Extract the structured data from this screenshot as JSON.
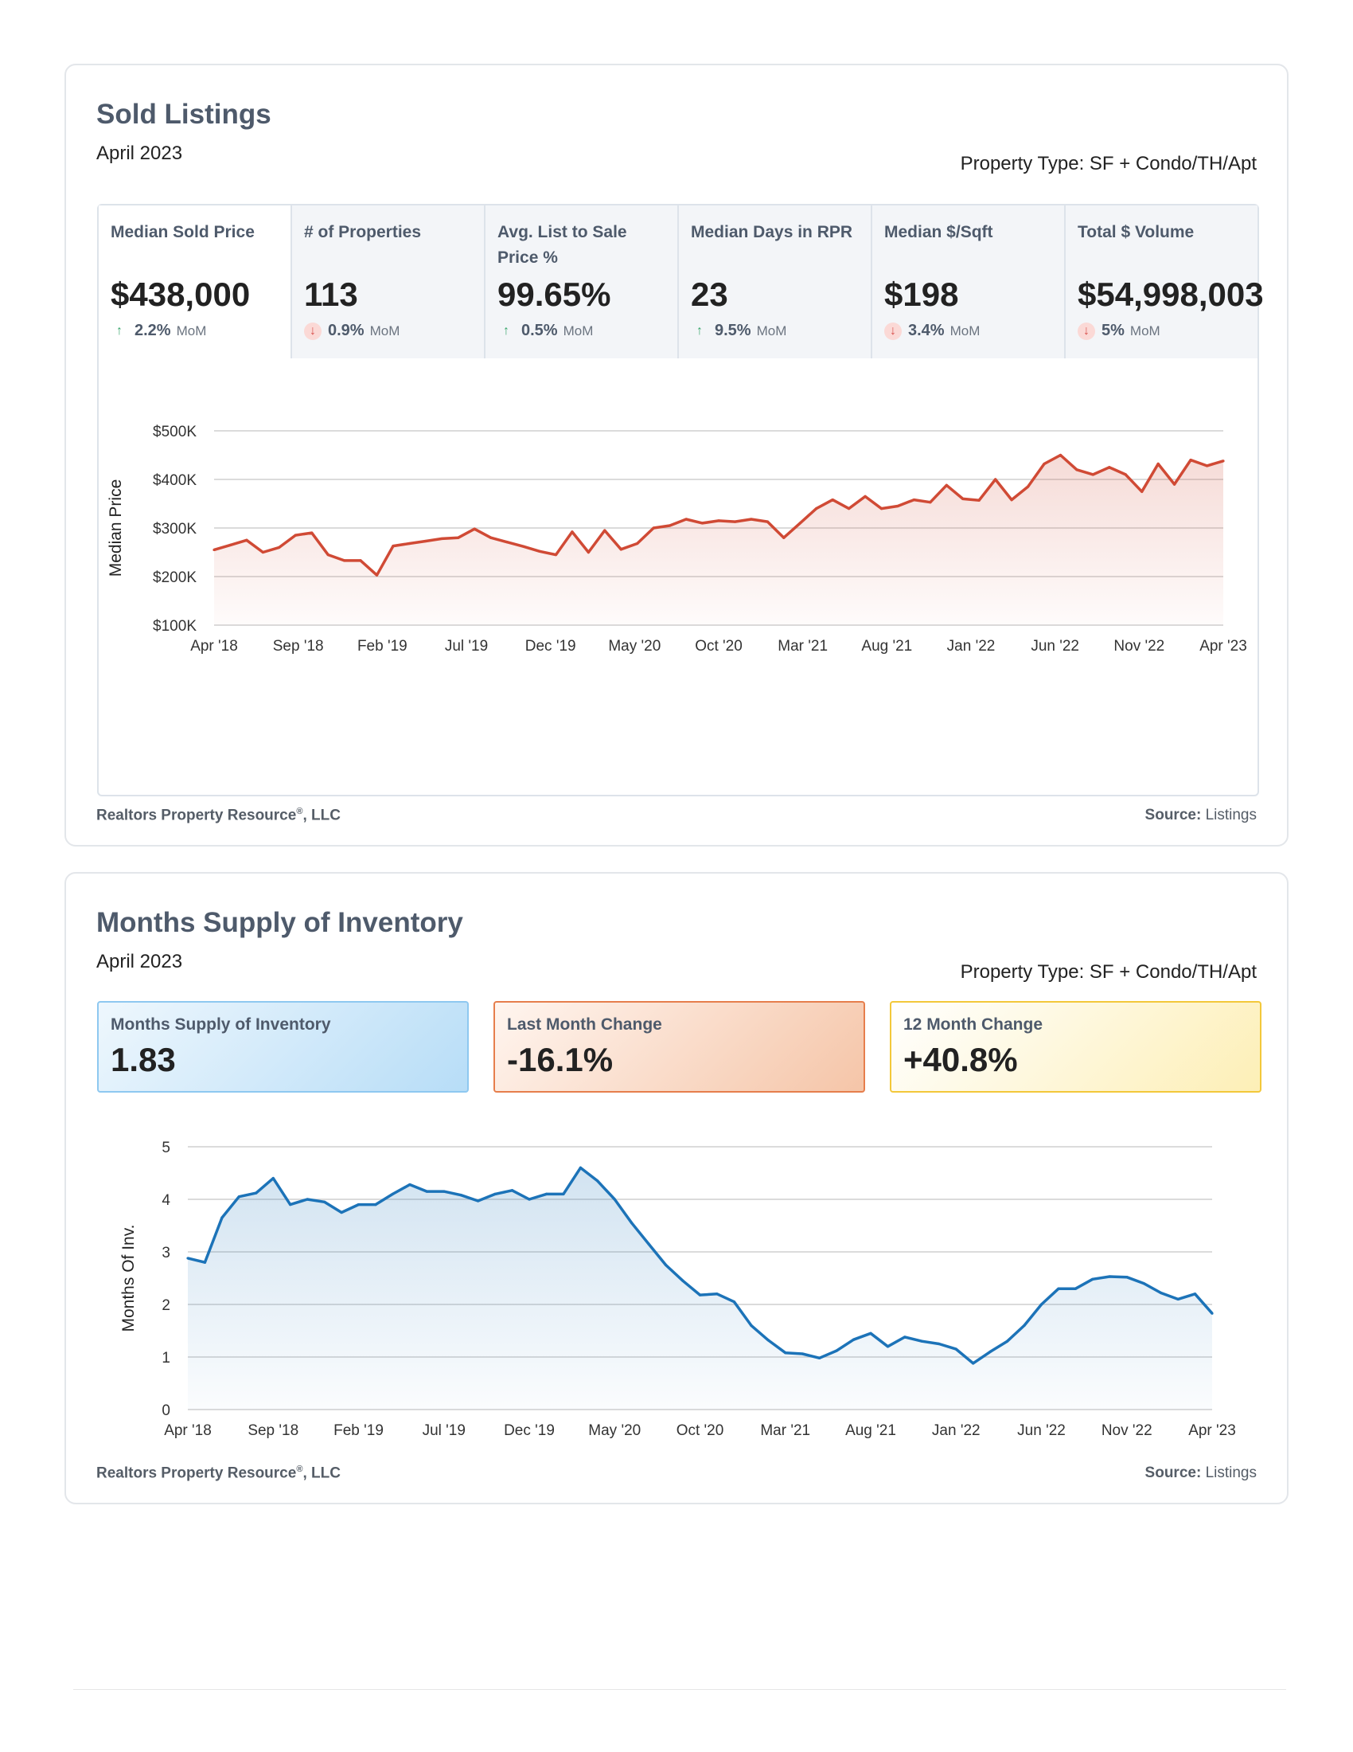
{
  "sold": {
    "title": "Sold Listings",
    "date": "April 2023",
    "property_type": "Property Type: SF + Condo/TH/Apt",
    "tiles": [
      {
        "label": "Median Sold Price",
        "value": "$438,000",
        "change": "2.2%",
        "dir": "up",
        "mom": "MoM"
      },
      {
        "label": "# of Properties",
        "value": "113",
        "change": "0.9%",
        "dir": "down",
        "mom": "MoM"
      },
      {
        "label": "Avg. List to Sale Price %",
        "value": "99.65%",
        "change": "0.5%",
        "dir": "up",
        "mom": "MoM"
      },
      {
        "label": "Median Days in RPR",
        "value": "23",
        "change": "9.5%",
        "dir": "up",
        "mom": "MoM"
      },
      {
        "label": "Median $/Sqft",
        "value": "$198",
        "change": "3.4%",
        "dir": "down",
        "mom": "MoM"
      },
      {
        "label": "Total $ Volume",
        "value": "$54,998,003",
        "change": "5%",
        "dir": "down",
        "mom": "MoM"
      }
    ],
    "footer": "Realtors Property Resource",
    "footer_mark": "®",
    "footer_suffix": ", LLC",
    "source_label": "Source:",
    "source_value": "Listings"
  },
  "supply": {
    "title": "Months Supply of Inventory",
    "date": "April 2023",
    "property_type": "Property Type: SF + Condo/TH/Apt",
    "tiles": [
      {
        "label": "Months Supply of Inventory",
        "value": "1.83"
      },
      {
        "label": "Last Month Change",
        "value": "-16.1%"
      },
      {
        "label": "12 Month Change",
        "value": "+40.8%"
      }
    ],
    "footer": "Realtors Property Resource",
    "footer_mark": "®",
    "footer_suffix": ", LLC",
    "source_label": "Source:",
    "source_value": "Listings"
  },
  "chart_data": [
    {
      "type": "area",
      "title": "",
      "ylabel": "Median Price",
      "xlabel": "",
      "ylim": [
        100000,
        500000
      ],
      "yticks": [
        500000,
        400000,
        300000,
        200000,
        100000
      ],
      "ytick_labels": [
        "$500K",
        "$400K",
        "$300K",
        "$200K",
        "$100K"
      ],
      "xtick_labels": [
        "Apr '18",
        "Sep '18",
        "Feb '19",
        "Jul '19",
        "Dec '19",
        "May '20",
        "Oct '20",
        "Mar '21",
        "Aug '21",
        "Jan '22",
        "Jun '22",
        "Nov '22",
        "Apr '23"
      ],
      "color": "#d04a35",
      "grid": true,
      "values": [
        255000,
        265000,
        275000,
        250000,
        260000,
        285000,
        290000,
        245000,
        233000,
        233000,
        203000,
        263000,
        268000,
        273000,
        278000,
        280000,
        298000,
        280000,
        271000,
        262000,
        252000,
        245000,
        292000,
        250000,
        295000,
        256000,
        268000,
        300000,
        305000,
        318000,
        310000,
        315000,
        313000,
        318000,
        313000,
        280000,
        310000,
        340000,
        358000,
        340000,
        365000,
        340000,
        345000,
        358000,
        353000,
        388000,
        360000,
        357000,
        400000,
        358000,
        385000,
        432000,
        450000,
        420000,
        410000,
        425000,
        410000,
        375000,
        432000,
        390000,
        440000,
        428000,
        438000
      ]
    },
    {
      "type": "area",
      "title": "",
      "ylabel": "Months Of Inv.",
      "xlabel": "",
      "ylim": [
        0,
        5
      ],
      "yticks": [
        5,
        4,
        3,
        2,
        1,
        0
      ],
      "ytick_labels": [
        "5",
        "4",
        "3",
        "2",
        "1",
        "0"
      ],
      "xtick_labels": [
        "Apr '18",
        "Sep '18",
        "Feb '19",
        "Jul '19",
        "Dec '19",
        "May '20",
        "Oct '20",
        "Mar '21",
        "Aug '21",
        "Jan '22",
        "Jun '22",
        "Nov '22",
        "Apr '23"
      ],
      "color": "#1c73b8",
      "grid": true,
      "values": [
        2.88,
        2.8,
        3.65,
        4.05,
        4.12,
        4.4,
        3.9,
        4.0,
        3.95,
        3.75,
        3.9,
        3.9,
        4.1,
        4.28,
        4.15,
        4.15,
        4.08,
        3.97,
        4.1,
        4.17,
        4.0,
        4.1,
        4.1,
        4.6,
        4.35,
        4.0,
        3.55,
        3.15,
        2.75,
        2.45,
        2.18,
        2.2,
        2.05,
        1.6,
        1.32,
        1.08,
        1.06,
        0.98,
        1.12,
        1.33,
        1.45,
        1.2,
        1.38,
        1.3,
        1.25,
        1.15,
        0.88,
        1.1,
        1.3,
        1.6,
        2.0,
        2.3,
        2.3,
        2.48,
        2.53,
        2.52,
        2.4,
        2.22,
        2.1,
        2.2,
        1.83
      ]
    }
  ]
}
